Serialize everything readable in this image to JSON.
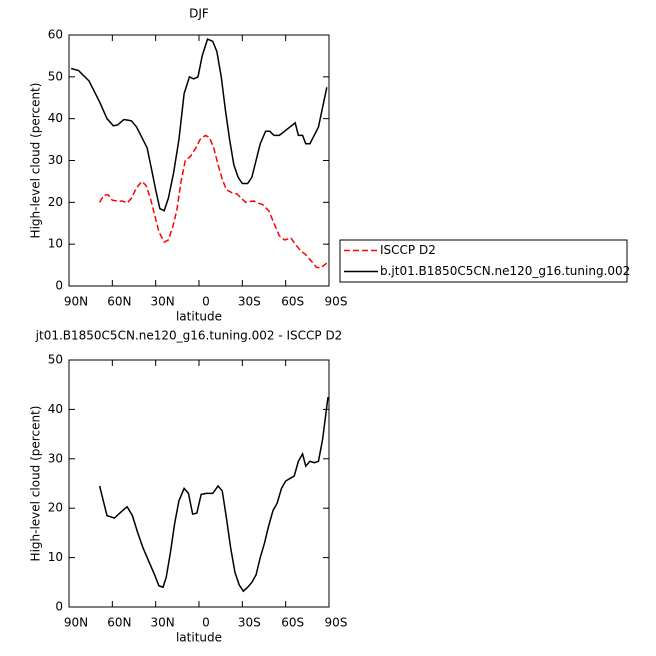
{
  "chart_data": [
    {
      "type": "line",
      "title": "DJF",
      "x_label": "latitude",
      "y_label": "High-level cloud (percent)",
      "xlim": [
        90,
        -90
      ],
      "xticks": [
        {
          "value": 90,
          "label": "90N"
        },
        {
          "value": 60,
          "label": "60N"
        },
        {
          "value": 30,
          "label": "30N"
        },
        0,
        {
          "value": -30,
          "label": "30S"
        },
        {
          "value": -60,
          "label": "60S"
        },
        {
          "value": -90,
          "label": "90S"
        }
      ],
      "ylim": [
        0,
        60
      ],
      "yticks": [
        0,
        10,
        20,
        30,
        40,
        50,
        60
      ],
      "legend": "right",
      "series": [
        {
          "name": "ISCCP D2",
          "color": "#ff0000",
          "dashed": true,
          "x": [
            68.8,
            65.9,
            62.9,
            60.0,
            56.3,
            52.7,
            49.8,
            46.8,
            43.2,
            39.5,
            36.6,
            33.7,
            30.7,
            27.8,
            24.1,
            21.2,
            18.3,
            15.4,
            12.4,
            9.5,
            5.9,
            2.2,
            -0.7,
            -4.4,
            -7.3,
            -10.2,
            -13.2,
            -16.1,
            -19.0,
            -22.7,
            -26.3,
            -29.3,
            -32.2,
            -35.1,
            -38.0,
            -41.0,
            -43.9,
            -48.3,
            -51.9,
            -55.6,
            -59.3,
            -63.6,
            -66.6,
            -70.2,
            -73.9,
            -77.6,
            -81.2,
            -84.2,
            -88.5
          ],
          "values": [
            20,
            21.7,
            21.8,
            20.5,
            20.3,
            20.3,
            19.8,
            21,
            23.5,
            25,
            24,
            21,
            17,
            13,
            10.5,
            11,
            14,
            18,
            25,
            30,
            31,
            33,
            35,
            36,
            35.5,
            33,
            29,
            25.5,
            23,
            22.3,
            22,
            21,
            20,
            20.2,
            20.3,
            19.8,
            19.5,
            18,
            15,
            12,
            11,
            11.5,
            10,
            8.5,
            7.5,
            6,
            4.5,
            4.3,
            5.5
          ]
        },
        {
          "name": "b.jt01.B1850C5CN.ne120_g16.tuning.002",
          "color": "#000000",
          "dashed": false,
          "x": [
            88.5,
            83.4,
            76.1,
            68.8,
            63.7,
            59.3,
            56.3,
            52.0,
            46.8,
            43.2,
            38.8,
            35.9,
            32.9,
            30.0,
            27.1,
            24.1,
            21.2,
            17.6,
            13.9,
            10.3,
            6.6,
            3.7,
            0.7,
            -2.2,
            -5.9,
            -9.5,
            -12.4,
            -15.4,
            -18.3,
            -21.2,
            -24.1,
            -27.1,
            -30.0,
            -33.7,
            -36.6,
            -39.5,
            -42.4,
            -46.1,
            -49.0,
            -51.9,
            -55.6,
            -59.3,
            -62.9,
            -66.6,
            -68.8,
            -71.7,
            -73.9,
            -76.8,
            -82.7,
            -88.5
          ],
          "values": [
            52,
            51.5,
            49,
            44,
            40,
            38.3,
            38.5,
            39.8,
            39.5,
            38,
            35,
            33,
            28,
            23,
            18.5,
            18,
            21,
            27,
            35,
            46,
            50,
            49.5,
            50,
            55,
            59,
            58.5,
            56,
            50,
            42,
            35,
            29,
            26,
            24.5,
            24.5,
            26,
            30,
            34,
            37,
            37,
            36,
            36,
            37,
            38,
            39,
            36,
            36,
            34,
            34,
            38,
            47.5
          ]
        }
      ]
    },
    {
      "type": "line",
      "title": "jt01.B1850C5CN.ne120_g16.tuning.002 - ISCCP D2",
      "x_label": "latitude",
      "y_label": "High-level cloud (percent)",
      "xlim": [
        90,
        -90
      ],
      "xticks": [
        {
          "value": 90,
          "label": "90N"
        },
        {
          "value": 60,
          "label": "60N"
        },
        {
          "value": 30,
          "label": "30N"
        },
        0,
        {
          "value": -30,
          "label": "30S"
        },
        {
          "value": -60,
          "label": "60S"
        },
        {
          "value": -90,
          "label": "90S"
        }
      ],
      "ylim": [
        0,
        50
      ],
      "yticks": [
        0,
        10,
        20,
        30,
        40,
        50
      ],
      "series": [
        {
          "color": "#000000",
          "dashed": false,
          "x": [
            68.8,
            63.7,
            58.5,
            54.9,
            49.8,
            46.1,
            42.4,
            38.8,
            34.4,
            30.7,
            27.8,
            24.9,
            22.7,
            19.8,
            16.8,
            13.9,
            10.3,
            7.3,
            4.4,
            1.5,
            -1.5,
            -5.1,
            -9.5,
            -13.2,
            -16.1,
            -19.0,
            -21.9,
            -24.9,
            -27.8,
            -30.7,
            -33.7,
            -36.6,
            -39.5,
            -42.4,
            -45.4,
            -48.3,
            -51.2,
            -54.1,
            -57.1,
            -60.0,
            -62.9,
            -65.9,
            -68.8,
            -71.7,
            -73.9,
            -76.8,
            -79.8,
            -82.7,
            -85.6,
            -89.3
          ],
          "values": [
            24.5,
            18.5,
            18,
            19,
            20.3,
            18.5,
            15,
            12,
            9,
            6.5,
            4.3,
            4,
            6,
            11,
            17,
            21.5,
            24,
            23,
            18.8,
            19,
            22.8,
            23,
            23,
            24.5,
            23.5,
            18,
            12,
            7,
            4.5,
            3.2,
            4,
            5,
            6.5,
            10,
            13,
            16.5,
            19.5,
            21,
            24,
            25.5,
            26,
            26.5,
            29.5,
            31,
            28.5,
            29.5,
            29.2,
            29.5,
            34,
            42.5
          ]
        }
      ]
    }
  ]
}
